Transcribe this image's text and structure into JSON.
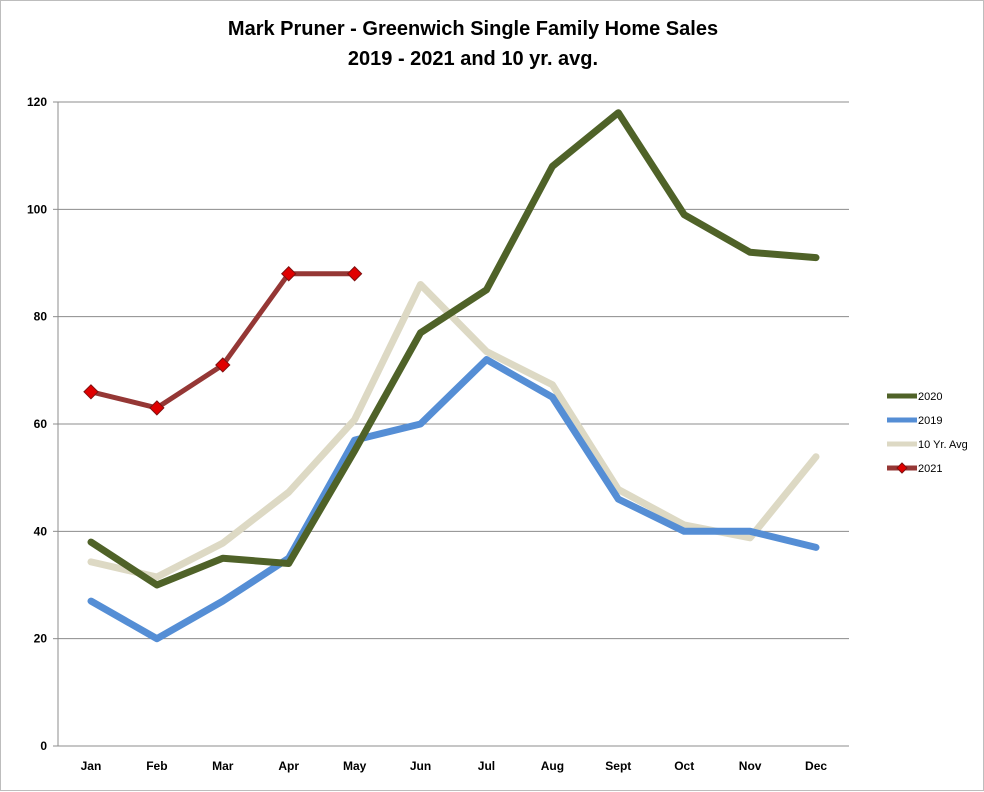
{
  "chart_data": {
    "type": "line",
    "title": "Mark Pruner - Greenwich Single Family Home Sales",
    "subtitle": "2019 - 2021 and 10 yr. avg.",
    "categories": [
      "Jan",
      "Feb",
      "Mar",
      "Apr",
      "May",
      "Jun",
      "Jul",
      "Aug",
      "Sept",
      "Oct",
      "Nov",
      "Dec"
    ],
    "ylim": [
      0,
      120
    ],
    "yticks": [
      0,
      20,
      40,
      60,
      80,
      100,
      120
    ],
    "grid": true,
    "legend_position": "right",
    "series": [
      {
        "name": "2020",
        "color": "#4f6228",
        "marker": "none",
        "values": [
          38,
          30,
          35,
          34,
          55,
          77,
          85,
          108,
          118,
          99,
          92,
          91
        ]
      },
      {
        "name": "2019",
        "color": "#558ed5",
        "marker": "none",
        "values": [
          27,
          20,
          27,
          35,
          57,
          60,
          72,
          65,
          46,
          40,
          40,
          37
        ]
      },
      {
        "name": "10 Yr. Avg",
        "color": "#ddd9c4",
        "marker": "none",
        "values": [
          34.3,
          31.5,
          37.8,
          47.3,
          60.8,
          86,
          73.5,
          67.3,
          47.8,
          41.2,
          38.8,
          53.9
        ]
      },
      {
        "name": "2021",
        "color": "#953735",
        "marker": "diamond",
        "marker_color": "#e00000",
        "values": [
          66,
          63,
          71,
          88,
          88,
          null,
          null,
          null,
          null,
          null,
          null,
          null
        ]
      }
    ]
  }
}
